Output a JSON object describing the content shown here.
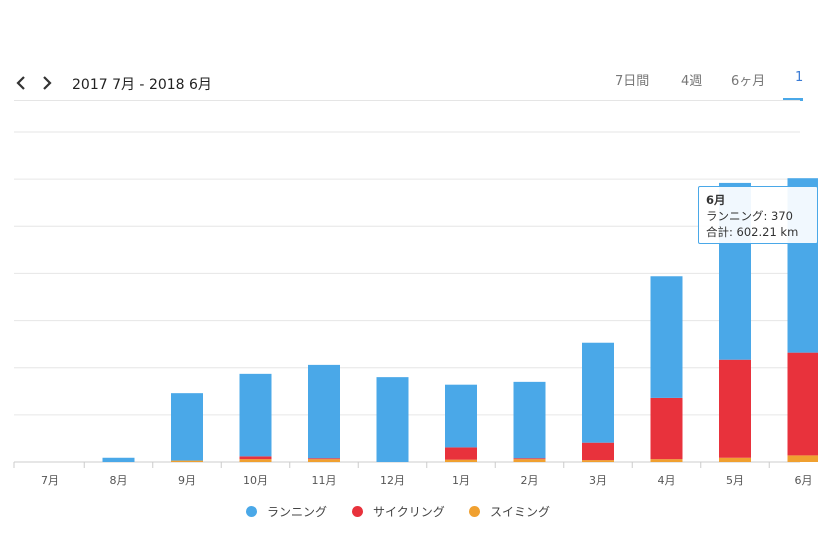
{
  "toolbar": {
    "range_label": "2017 7月 - 2018 6月",
    "tabs": [
      "7日間",
      "4週",
      "6ヶ月",
      "1"
    ],
    "active_tab": 3
  },
  "colors": {
    "running": "#4aa8e8",
    "cycling": "#e8323c",
    "swimming": "#f0a030",
    "grid": "#e6e6e6",
    "axis": "#cccccc"
  },
  "chart_data": {
    "type": "bar",
    "stacked": true,
    "categories": [
      "7月",
      "8月",
      "9月",
      "10月",
      "11月",
      "12月",
      "1月",
      "2月",
      "3月",
      "4月",
      "5月",
      "6月"
    ],
    "series": [
      {
        "name": "ランニング",
        "color": "#4aa8e8",
        "values": [
          0,
          9,
          143,
          175,
          198,
          180,
          133,
          162,
          212,
          258,
          375,
          370
        ]
      },
      {
        "name": "サイクリング",
        "color": "#e8323c",
        "values": [
          0,
          0,
          0,
          6,
          2,
          0,
          26,
          2,
          37,
          130,
          208,
          218
        ]
      },
      {
        "name": "スイミング",
        "color": "#f0a030",
        "values": [
          0,
          0,
          3,
          6,
          6,
          0,
          5,
          6,
          4,
          6,
          9,
          14
        ]
      }
    ],
    "ylim": [
      0,
      700
    ],
    "grid": true,
    "legend_position": "bottom"
  },
  "legend": [
    {
      "label": "ランニング",
      "color": "#4aa8e8"
    },
    {
      "label": "サイクリング",
      "color": "#e8323c"
    },
    {
      "label": "スイミング",
      "color": "#f0a030"
    }
  ],
  "tooltip": {
    "title": "6月",
    "line1": "ランニング: 370",
    "line2": "合計: 602.21 km"
  }
}
